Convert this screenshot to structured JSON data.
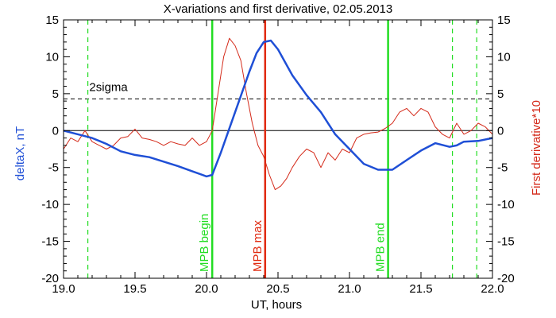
{
  "chart_data": {
    "type": "line",
    "title": "X-variations and first derivative, 02.05.2013",
    "xlabel": "UT, hours",
    "ylabel_left": "deltaX, nT",
    "ylabel_right": "First derivative*10",
    "xlim": [
      19.0,
      22.0
    ],
    "ylim_left": [
      -20,
      15
    ],
    "ylim_right": [
      -20,
      15
    ],
    "x_ticks": [
      "19.0",
      "19.5",
      "20.0",
      "20.5",
      "21.0",
      "21.5",
      "22.0"
    ],
    "y_ticks": [
      "-20",
      "-15",
      "-10",
      "-5",
      "0",
      "5",
      "10",
      "15"
    ],
    "grid": false,
    "colors": {
      "deltaX": "#1f4fd6",
      "derivative": "#d42a1a",
      "green": "#22dd22",
      "red_line": "#e02a10",
      "axis": "#000000"
    },
    "reference_lines": {
      "zero": 0,
      "sigma": 4.3,
      "sigma_label": "2sigma"
    },
    "vertical_markers": [
      {
        "x": 20.04,
        "label": "MPB begin",
        "color": "#22dd22",
        "style": "solid"
      },
      {
        "x": 20.41,
        "label": "MPB max",
        "color": "#e02a10",
        "style": "solid"
      },
      {
        "x": 21.27,
        "label": "MPB end",
        "color": "#22dd22",
        "style": "solid"
      },
      {
        "x": 19.17,
        "label": "",
        "color": "#22dd22",
        "style": "dashed"
      },
      {
        "x": 21.72,
        "label": "",
        "color": "#22dd22",
        "style": "dashed"
      },
      {
        "x": 21.89,
        "label": "",
        "color": "#22dd22",
        "style": "dashed"
      }
    ],
    "series": [
      {
        "axis": "left",
        "x": [
          19.0,
          19.1,
          19.2,
          19.3,
          19.4,
          19.5,
          19.6,
          19.7,
          19.8,
          19.9,
          20.0,
          20.04,
          20.1,
          20.2,
          20.3,
          20.35,
          20.4,
          20.45,
          20.5,
          20.6,
          20.7,
          20.8,
          20.9,
          21.0,
          21.1,
          21.2,
          21.3,
          21.4,
          21.5,
          21.6,
          21.7,
          21.75,
          21.8,
          21.9,
          22.0
        ],
        "values": [
          0.0,
          -0.5,
          -1.0,
          -1.8,
          -2.8,
          -3.3,
          -3.6,
          -4.2,
          -4.8,
          -5.5,
          -6.2,
          -6.0,
          -3.0,
          2.5,
          8.0,
          10.5,
          12.0,
          12.2,
          11.0,
          7.5,
          4.8,
          2.5,
          -0.5,
          -2.5,
          -4.5,
          -5.3,
          -5.3,
          -4.0,
          -2.7,
          -1.7,
          -2.2,
          -2.0,
          -1.5,
          -1.4,
          -1.0
        ]
      },
      {
        "axis": "right",
        "x": [
          19.0,
          19.05,
          19.1,
          19.15,
          19.2,
          19.25,
          19.3,
          19.35,
          19.4,
          19.45,
          19.5,
          19.55,
          19.6,
          19.65,
          19.7,
          19.75,
          19.8,
          19.85,
          19.9,
          19.95,
          20.0,
          20.04,
          20.08,
          20.12,
          20.16,
          20.2,
          20.24,
          20.28,
          20.32,
          20.36,
          20.4,
          20.44,
          20.48,
          20.52,
          20.56,
          20.6,
          20.65,
          20.7,
          20.75,
          20.8,
          20.85,
          20.9,
          20.95,
          21.0,
          21.05,
          21.1,
          21.15,
          21.2,
          21.25,
          21.3,
          21.35,
          21.4,
          21.45,
          21.5,
          21.55,
          21.6,
          21.65,
          21.7,
          21.75,
          21.8,
          21.85,
          21.9,
          21.95,
          22.0
        ],
        "values": [
          -2.5,
          -1.0,
          -1.5,
          0.0,
          -1.5,
          -2.0,
          -2.5,
          -2.0,
          -1.0,
          -0.8,
          0.2,
          -1.0,
          -1.2,
          -1.5,
          -2.0,
          -1.5,
          -1.8,
          -2.0,
          -1.0,
          -2.0,
          -1.5,
          0.0,
          5.0,
          10.0,
          12.5,
          11.5,
          9.5,
          5.0,
          1.0,
          -2.0,
          -3.5,
          -6.0,
          -8.0,
          -7.5,
          -6.5,
          -5.0,
          -3.5,
          -2.5,
          -3.0,
          -5.0,
          -3.0,
          -4.0,
          -2.5,
          -3.0,
          -1.0,
          -0.5,
          -0.3,
          -0.2,
          0.3,
          1.0,
          2.5,
          3.0,
          2.0,
          3.0,
          2.5,
          0.5,
          -0.5,
          -1.0,
          1.0,
          -0.5,
          0.0,
          1.0,
          0.5,
          -0.5
        ]
      }
    ]
  }
}
